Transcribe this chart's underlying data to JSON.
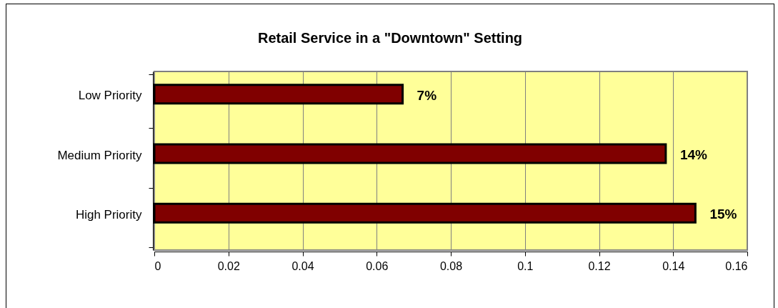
{
  "chart_data": {
    "type": "bar",
    "orientation": "horizontal",
    "title": "Retail Service in a \"Downtown\" Setting",
    "categories": [
      "Low Priority",
      "Medium Priority",
      "High Priority"
    ],
    "values": [
      0.067,
      0.138,
      0.146
    ],
    "color": "#800000",
    "value_labels": [
      "7%",
      "14%",
      "15%"
    ],
    "xlim": [
      0,
      0.16
    ],
    "xticks": [
      0,
      0.02,
      0.04,
      0.06,
      0.08,
      0.1,
      0.12,
      0.14,
      0.16
    ],
    "grid": "x"
  }
}
